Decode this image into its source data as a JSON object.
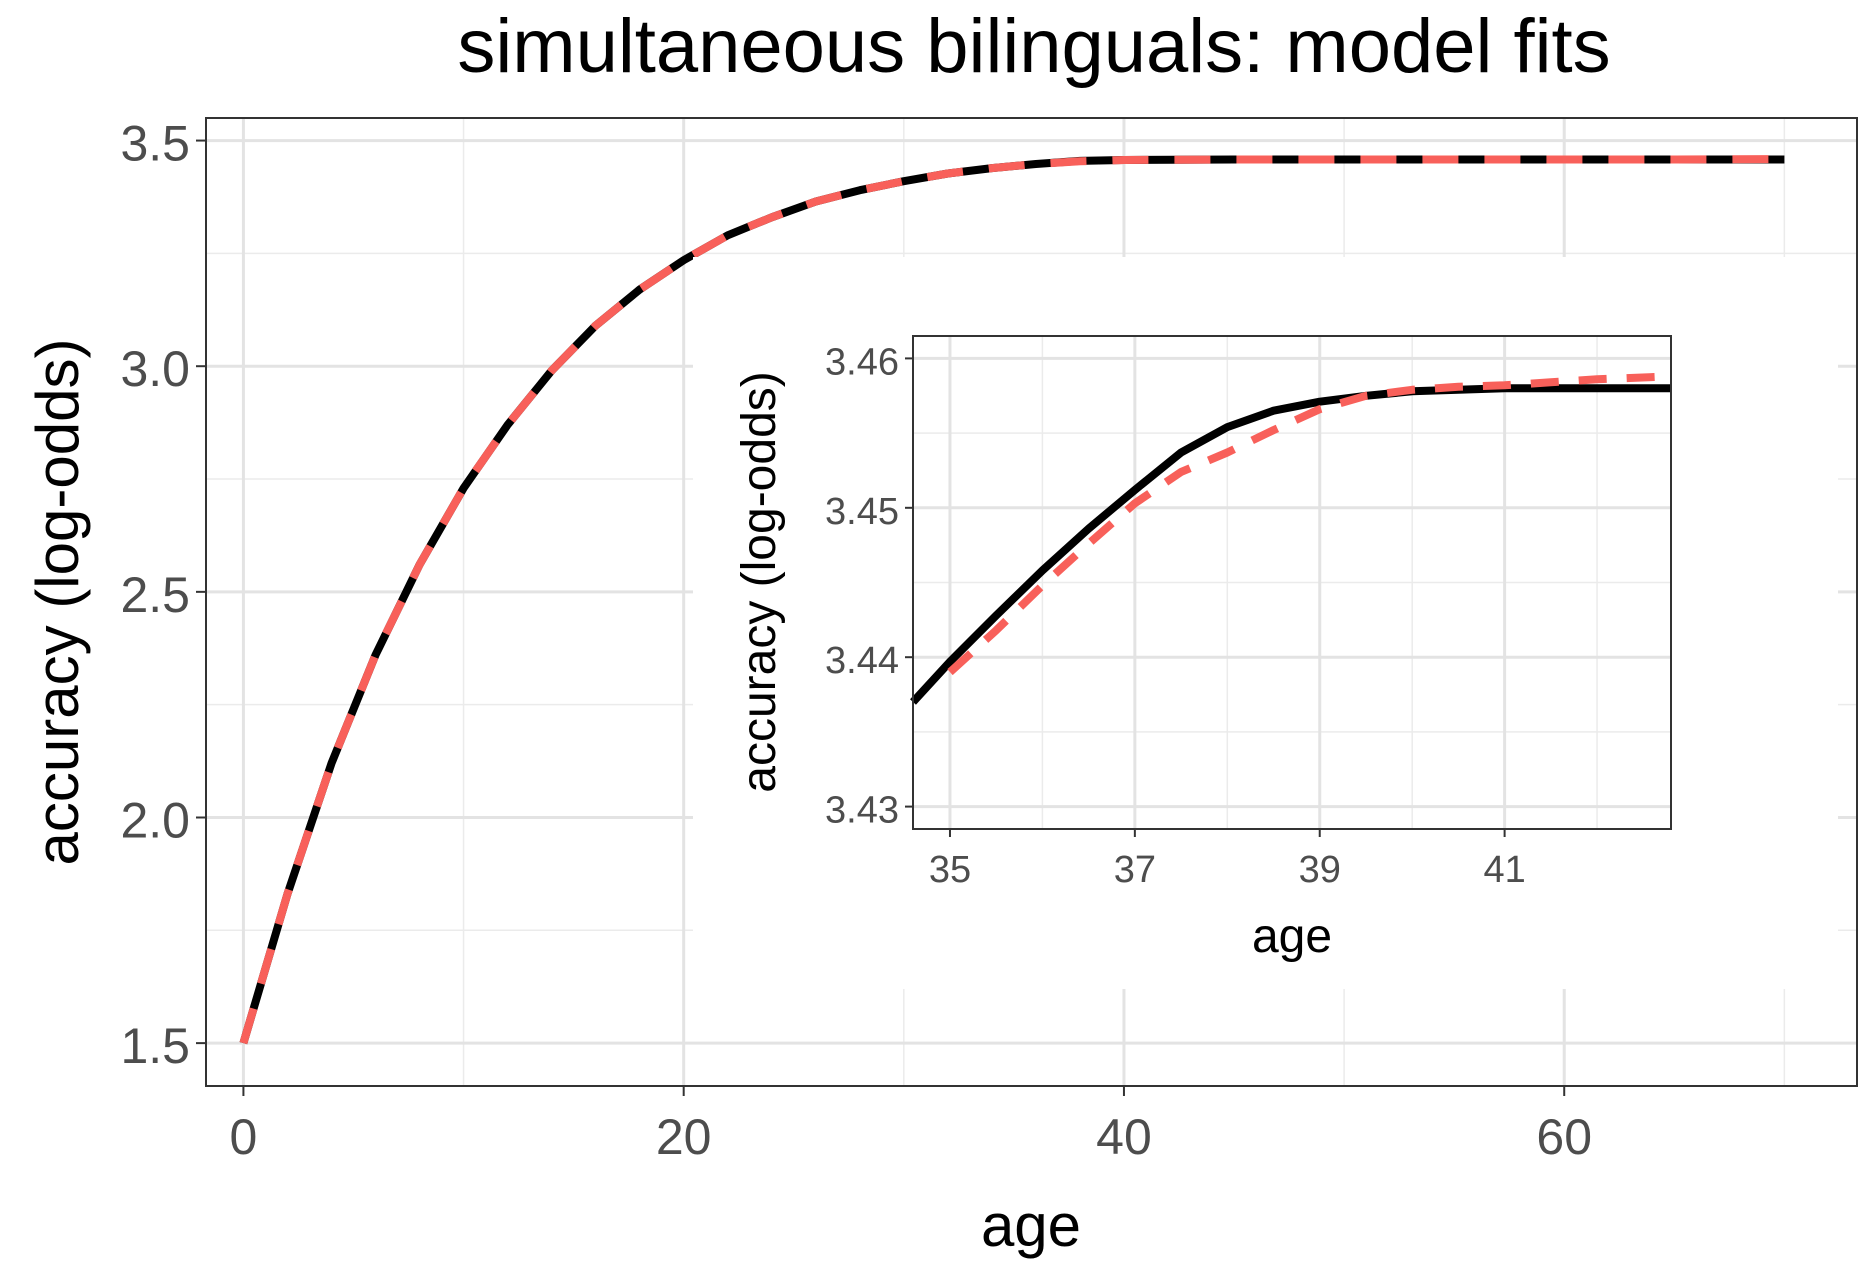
{
  "chart_data": [
    {
      "type": "line",
      "title": "simultaneous bilinguals: model fits",
      "xlabel": "age",
      "ylabel": "accuracy (log-odds)",
      "xlim": [
        -1.7,
        73.3
      ],
      "ylim": [
        1.405,
        3.55
      ],
      "xticks": [
        0,
        20,
        40,
        60
      ],
      "xtick_labels": [
        "0",
        "20",
        "40",
        "60"
      ],
      "yticks": [
        1.5,
        2.0,
        2.5,
        3.0,
        3.5
      ],
      "ytick_labels": [
        "1.5",
        "2.0",
        "2.5",
        "3.0",
        "3.5"
      ],
      "grid": true,
      "series": [
        {
          "color": "#000000",
          "style": "solid",
          "x": [
            0,
            2,
            4,
            6,
            8,
            10,
            12,
            14,
            16,
            18,
            20,
            22,
            24,
            26,
            28,
            30,
            32,
            34,
            36,
            38,
            40,
            45,
            50,
            55,
            60,
            65,
            70
          ],
          "values": [
            1.5,
            1.83,
            2.12,
            2.36,
            2.56,
            2.73,
            2.87,
            2.99,
            3.09,
            3.17,
            3.235,
            3.29,
            3.33,
            3.365,
            3.39,
            3.41,
            3.427,
            3.439,
            3.448,
            3.455,
            3.457,
            3.458,
            3.458,
            3.458,
            3.458,
            3.458,
            3.458
          ]
        },
        {
          "color": "#f8605a",
          "style": "dashed",
          "x": [
            0,
            2,
            4,
            6,
            8,
            10,
            12,
            14,
            16,
            18,
            20,
            22,
            24,
            26,
            28,
            30,
            32,
            34,
            36,
            38,
            40,
            45,
            50,
            55,
            60,
            65,
            70
          ],
          "values": [
            1.5,
            1.83,
            2.12,
            2.36,
            2.56,
            2.73,
            2.87,
            2.99,
            3.09,
            3.17,
            3.235,
            3.29,
            3.33,
            3.365,
            3.39,
            3.41,
            3.427,
            3.439,
            3.448,
            3.454,
            3.457,
            3.458,
            3.458,
            3.458,
            3.458,
            3.458,
            3.459
          ]
        }
      ]
    },
    {
      "type": "line",
      "title": "",
      "xlabel": "age",
      "ylabel": "accuracy (log-odds)",
      "xlim": [
        34.6,
        42.8
      ],
      "ylim": [
        3.4285,
        3.4615
      ],
      "xticks": [
        35,
        37,
        39,
        41
      ],
      "xtick_labels": [
        "35",
        "37",
        "39",
        "41"
      ],
      "yticks": [
        3.43,
        3.44,
        3.45,
        3.46
      ],
      "ytick_labels": [
        "3.43",
        "3.44",
        "3.45",
        "3.46"
      ],
      "grid": true,
      "series": [
        {
          "color": "#000000",
          "style": "solid",
          "x": [
            34.6,
            35,
            35.5,
            36,
            36.5,
            37,
            37.5,
            38,
            38.5,
            39,
            39.5,
            40,
            40.5,
            41,
            41.5,
            42,
            42.8
          ],
          "values": [
            3.437,
            3.4397,
            3.4428,
            3.4458,
            3.4486,
            3.4512,
            3.4537,
            3.4554,
            3.4565,
            3.4571,
            3.4575,
            3.4578,
            3.4579,
            3.458,
            3.458,
            3.458,
            3.458
          ]
        },
        {
          "color": "#f8605a",
          "style": "dashed",
          "x": [
            35,
            35.5,
            36,
            36.5,
            37,
            37.5,
            38,
            38.5,
            39,
            39.5,
            40,
            40.5,
            41,
            41.5,
            42,
            42.8
          ],
          "values": [
            3.439,
            3.4418,
            3.4448,
            3.4476,
            3.4503,
            3.4524,
            3.4537,
            3.4552,
            3.4566,
            3.4575,
            3.4579,
            3.4581,
            3.4582,
            3.4584,
            3.4586,
            3.4588
          ]
        }
      ]
    }
  ]
}
